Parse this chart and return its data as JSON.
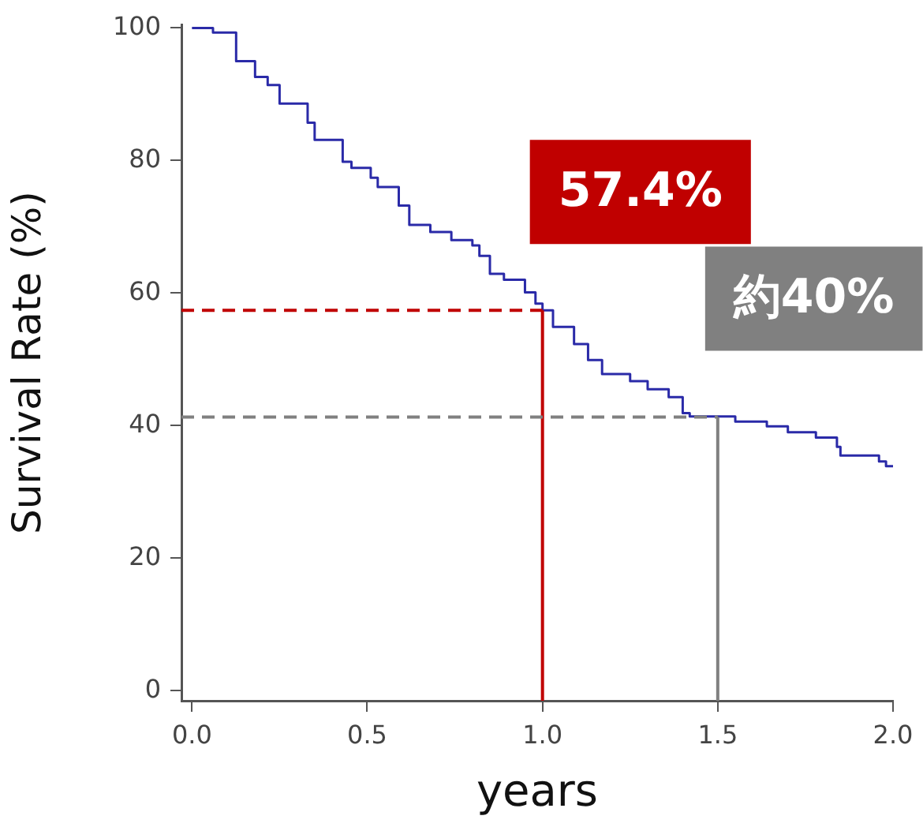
{
  "chart_data": {
    "type": "step",
    "xlabel": "years",
    "ylabel": "Survival Rate (%)",
    "x": [
      0,
      0.06,
      0.126,
      0.18,
      0.216,
      0.25,
      0.33,
      0.35,
      0.43,
      0.455,
      0.51,
      0.53,
      0.59,
      0.62,
      0.68,
      0.74,
      0.8,
      0.82,
      0.85,
      0.89,
      0.95,
      0.98,
      1.0,
      1.03,
      1.09,
      1.13,
      1.17,
      1.25,
      1.3,
      1.36,
      1.4,
      1.42,
      1.55,
      1.64,
      1.7,
      1.78,
      1.84,
      1.85,
      1.96,
      1.98,
      2.0
    ],
    "series": [
      {
        "color": "#2a2aa8",
        "values": [
          100,
          99.3,
          95,
          92.6,
          91.4,
          88.6,
          85.7,
          83.1,
          79.8,
          78.9,
          77.4,
          76,
          73.2,
          70.3,
          69.2,
          68,
          67.2,
          65.6,
          62.9,
          62,
          60.1,
          58.4,
          57.4,
          54.9,
          52.3,
          49.9,
          47.8,
          46.7,
          45.5,
          44.3,
          41.9,
          41.4,
          40.6,
          39.9,
          39,
          38.2,
          36.8,
          35.5,
          34.6,
          33.9,
          33.9
        ]
      }
    ],
    "xlim": [
      -0.03,
      2.0
    ],
    "ylim": [
      -1.5,
      100.5
    ],
    "xticks": [
      {
        "value": 0,
        "label": "0.0"
      },
      0.5,
      {
        "value": 1,
        "label": "1.0"
      },
      1.5,
      {
        "value": 2,
        "label": "2.0"
      }
    ],
    "yticks": [
      0,
      20,
      40,
      60,
      80,
      100
    ],
    "ref_lines": [
      {
        "axis": "y",
        "value": 57.4,
        "label": "57.4%",
        "color": "#c00000",
        "line_style": "dashed"
      },
      {
        "axis": "x",
        "value": 1.0,
        "color": "#c00000",
        "line_style": "solid"
      },
      {
        "axis": "y",
        "value": 41.3,
        "label": "約40%",
        "color": "#808080",
        "line_style": "dashed"
      },
      {
        "axis": "x",
        "value": 1.5,
        "color": "#808080",
        "line_style": "solid"
      }
    ]
  }
}
